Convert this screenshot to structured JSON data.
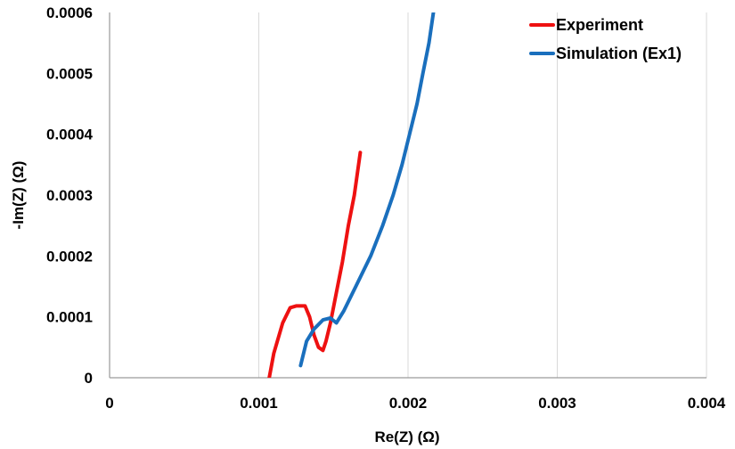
{
  "chart_data": {
    "type": "line",
    "xlabel": "Re(Z) (Ω)",
    "ylabel": "-Im(Z) (Ω)",
    "xlim": [
      0,
      0.004
    ],
    "ylim": [
      0,
      0.0006
    ],
    "x_ticks": [
      0,
      0.001,
      0.002,
      0.003,
      0.004
    ],
    "x_tick_labels": [
      "0",
      "0.001",
      "0.002",
      "0.003",
      "0.004"
    ],
    "y_ticks": [
      0,
      0.0001,
      0.0002,
      0.0003,
      0.0004,
      0.0005,
      0.0006
    ],
    "y_tick_labels": [
      "0",
      "0.0001",
      "0.0002",
      "0.0003",
      "0.0004",
      "0.0005",
      "0.0006"
    ],
    "grid": "vertical",
    "legend_position": "top-right",
    "series": [
      {
        "name": "Experiment",
        "color": "#ee1111",
        "points": [
          [
            0.00107,
            0.0
          ],
          [
            0.0011,
            4e-05
          ],
          [
            0.00116,
            9e-05
          ],
          [
            0.00121,
            0.000115
          ],
          [
            0.00125,
            0.000118
          ],
          [
            0.00131,
            0.000118
          ],
          [
            0.00134,
            0.0001
          ],
          [
            0.00137,
            7e-05
          ],
          [
            0.0014,
            5e-05
          ],
          [
            0.00143,
            4.5e-05
          ],
          [
            0.00145,
            6e-05
          ],
          [
            0.00148,
            9e-05
          ],
          [
            0.00152,
            0.00014
          ],
          [
            0.00156,
            0.00019
          ],
          [
            0.0016,
            0.00025
          ],
          [
            0.00164,
            0.0003
          ],
          [
            0.00168,
            0.00037
          ]
        ]
      },
      {
        "name": "Simulation (Ex1)",
        "color": "#1a6fbd",
        "points": [
          [
            0.00128,
            2e-05
          ],
          [
            0.00132,
            6e-05
          ],
          [
            0.00137,
            8e-05
          ],
          [
            0.00143,
            9.5e-05
          ],
          [
            0.00148,
            9.8e-05
          ],
          [
            0.00152,
            9e-05
          ],
          [
            0.00157,
            0.00011
          ],
          [
            0.00165,
            0.00015
          ],
          [
            0.00175,
            0.0002
          ],
          [
            0.00183,
            0.00025
          ],
          [
            0.0019,
            0.0003
          ],
          [
            0.00196,
            0.00035
          ],
          [
            0.00201,
            0.0004
          ],
          [
            0.00206,
            0.00045
          ],
          [
            0.0021,
            0.0005
          ],
          [
            0.00214,
            0.00055
          ],
          [
            0.00217,
            0.0006
          ]
        ]
      }
    ]
  }
}
